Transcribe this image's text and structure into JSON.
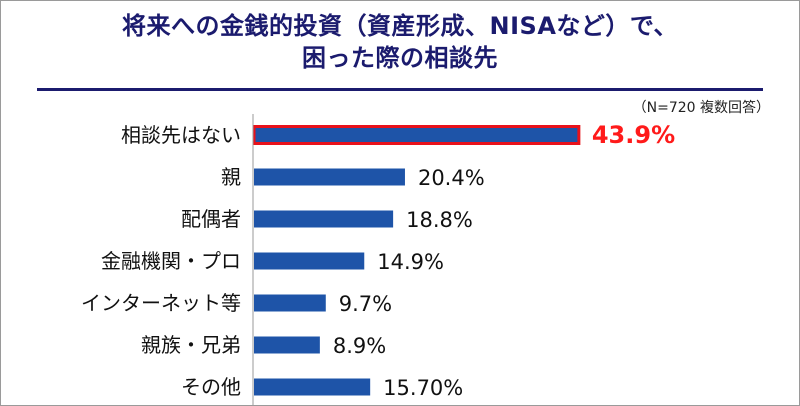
{
  "title": {
    "line1": "将来への金銭的投資（資産形成、NISAなど）で、",
    "line2": "困った際の相談先"
  },
  "note": "（N=720 複数回答）",
  "colors": {
    "title": "#1b1b6e",
    "bar": "#1e54a8",
    "highlight_border": "#e8121b",
    "highlight_label": "#ff1a1a",
    "axis": "#9a9a9a"
  },
  "chart_data": {
    "type": "bar",
    "orientation": "horizontal",
    "categories": [
      "相談先はない",
      "親",
      "配偶者",
      "金融機関・プロ",
      "インターネット等",
      "親族・兄弟",
      "その他"
    ],
    "values": [
      43.9,
      20.4,
      18.8,
      14.9,
      9.7,
      8.9,
      15.7
    ],
    "labels": [
      "43.9%",
      "20.4%",
      "18.8%",
      "14.9%",
      "9.7%",
      "8.9%",
      "15.70%"
    ],
    "highlight_index": 0,
    "xlim": [
      0,
      100
    ],
    "grid": false,
    "legend": "none"
  }
}
